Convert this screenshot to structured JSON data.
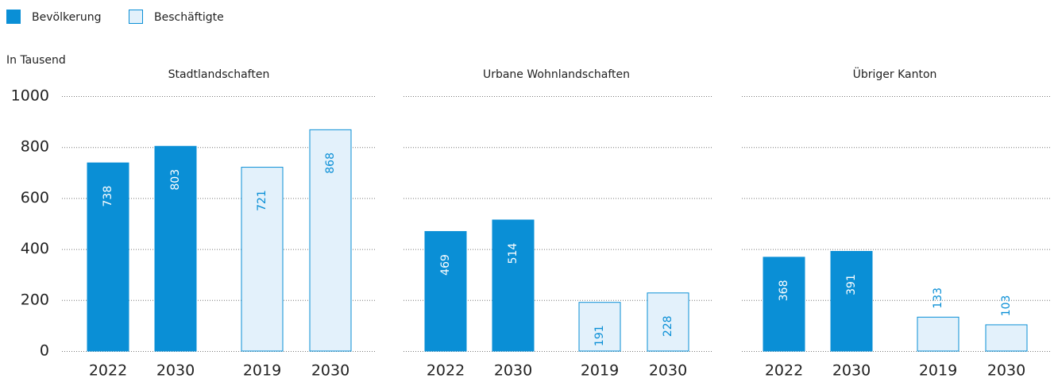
{
  "chart_data": {
    "type": "bar",
    "y_label": "In Tausend",
    "ylim": [
      0,
      1000
    ],
    "yticks": [
      0,
      200,
      400,
      600,
      800,
      1000
    ],
    "grid": true,
    "series": [
      {
        "name": "Bevölkerung",
        "color": "#0a8fd6",
        "border": "#0a8fd6"
      },
      {
        "name": "Beschäftigte",
        "color": "#e3f1fb",
        "border": "#0a8fd6"
      }
    ],
    "panels": [
      {
        "title": "Stadtlandschaften",
        "series": [
          {
            "categories": [
              "2022",
              "2030"
            ],
            "values": [
              738,
              803
            ]
          },
          {
            "categories": [
              "2019",
              "2030"
            ],
            "values": [
              721,
              868
            ]
          }
        ]
      },
      {
        "title": "Urbane Wohnlandschaften",
        "series": [
          {
            "categories": [
              "2022",
              "2030"
            ],
            "values": [
              469,
              514
            ]
          },
          {
            "categories": [
              "2019",
              "2030"
            ],
            "values": [
              191,
              228
            ]
          }
        ]
      },
      {
        "title": "Übriger Kanton",
        "series": [
          {
            "categories": [
              "2022",
              "2030"
            ],
            "values": [
              368,
              391
            ]
          },
          {
            "categories": [
              "2019",
              "2030"
            ],
            "values": [
              133,
              103
            ]
          }
        ]
      }
    ]
  }
}
